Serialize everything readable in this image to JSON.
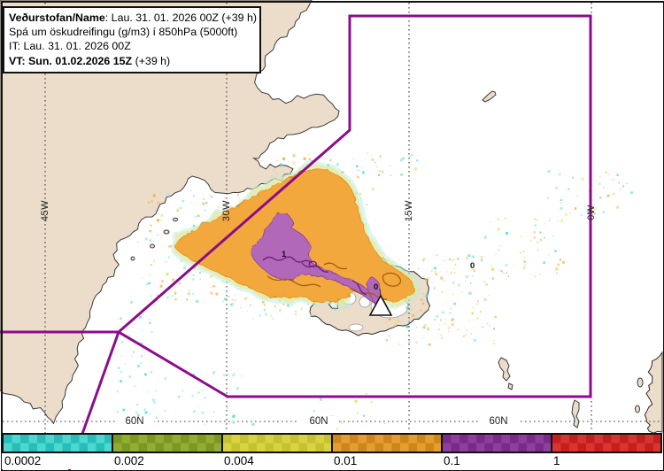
{
  "header": {
    "line1_bold": "Veðurstofan/Name",
    "line1_rest": ": Lau. 31. 01. 2026 00Z (+39 h)",
    "line2": "Spá um öskudreifingu (g/m3) í 850hPa (5000ft)",
    "line3": "IT: Lau. 31. 01. 2026 00Z",
    "line4_bold": "VT: Sun. 01.02.2026 15Z",
    "line4_rest": " (+39 h)"
  },
  "map": {
    "meridians": [
      {
        "label": "45W"
      },
      {
        "label": "30W"
      },
      {
        "label": "15W"
      },
      {
        "label": "0W"
      }
    ],
    "parallels": [
      {
        "label": "60N"
      },
      {
        "label": "60N"
      },
      {
        "label": "60N"
      }
    ],
    "contour_labels": [
      {
        "text": "1"
      },
      {
        "text": "0"
      },
      {
        "text": "0"
      }
    ],
    "volcano_marker": "volcano-triangle"
  },
  "legend": {
    "entries": [
      {
        "label": "0.0002",
        "color_a": "#4cd7cf",
        "color_b": "#28bcba"
      },
      {
        "label": "0.002",
        "color_a": "#93ac33",
        "color_b": "#7d9821"
      },
      {
        "label": "0.004",
        "color_a": "#d9d340",
        "color_b": "#c3c230"
      },
      {
        "label": "0.01",
        "color_a": "#e59d2e",
        "color_b": "#cd861a"
      },
      {
        "label": "0.1",
        "color_a": "#8e3f9e",
        "color_b": "#792b89"
      },
      {
        "label": "1",
        "color_a": "#d93431",
        "color_b": "#c31f1f"
      }
    ]
  },
  "colors": {
    "land": "#ecdcca",
    "land_outline": "#3a3a3a",
    "ocean": "#ffffff",
    "plume_low": "#f3a83e",
    "plume_high": "#b267b8",
    "contour_low_dark": "#a55f0e",
    "contour_high_dark": "#6b1d7e",
    "fir_boundary": "#8b0d8b",
    "graticule": "#3c3c3c",
    "speckle_palette": [
      "#5adcd4",
      "#e6df5e",
      "#f0a73a",
      "#9fe8e0",
      "#f5c46f"
    ]
  }
}
